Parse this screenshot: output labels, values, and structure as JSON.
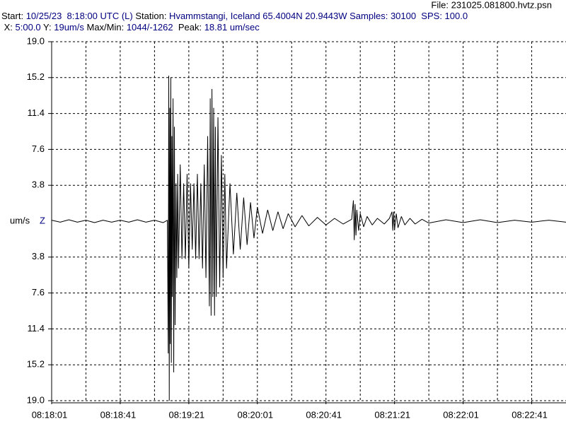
{
  "header": {
    "file": "File: 231025.081800.hvtz.psn",
    "lines": [
      [
        {
          "text": "Start:",
          "color": "#000000"
        },
        {
          "text": " 10/25/23  8:18:00 UTC (L) ",
          "color": "#000080"
        },
        {
          "text": "Station:",
          "color": "#000000"
        },
        {
          "text": " Hvammstangi, Iceland 65.4004N 20.9443W Samples: 30100  SPS: 100.0",
          "color": "#000080"
        }
      ],
      [
        {
          "text": " X:",
          "color": "#000000"
        },
        {
          "text": " 5:00.0 ",
          "color": "#000080"
        },
        {
          "text": "Y:",
          "color": "#000000"
        },
        {
          "text": " 19um/s ",
          "color": "#000080"
        },
        {
          "text": "Max/Min:",
          "color": "#000000"
        },
        {
          "text": " 1044/-1262  ",
          "color": "#000080"
        },
        {
          "text": "Peak:",
          "color": "#000000"
        },
        {
          "text": " 18.81 um/sec",
          "color": "#000080"
        }
      ]
    ]
  },
  "chart_data": {
    "type": "line",
    "y_unit": "um/s",
    "channel": "Z",
    "xlim": [
      0,
      300
    ],
    "ylim": [
      -19,
      19
    ],
    "xticks": [
      {
        "value": 0,
        "label": "08:18:01"
      },
      {
        "value": 40,
        "label": "08:18:41"
      },
      {
        "value": 80,
        "label": "08:19:21"
      },
      {
        "value": 120,
        "label": "08:20:01"
      },
      {
        "value": 160,
        "label": "08:20:41"
      },
      {
        "value": 200,
        "label": "08:21:21"
      },
      {
        "value": 240,
        "label": "08:22:01"
      },
      {
        "value": 280,
        "label": "08:22:41"
      }
    ],
    "xgrid": [
      20,
      40,
      60,
      80,
      100,
      120,
      140,
      160,
      180,
      200,
      220,
      240,
      260,
      280
    ],
    "yticks": [
      {
        "value": 19,
        "label": "19.0"
      },
      15.2,
      11.4,
      7.6,
      3.8,
      {
        "value": -3.8,
        "label": "3.8"
      },
      {
        "value": -7.6,
        "label": "7.6"
      },
      {
        "value": -11.4,
        "label": "11.4"
      },
      {
        "value": -15.2,
        "label": "15.2"
      },
      {
        "value": -19,
        "label": "19.0"
      }
    ],
    "grid": true,
    "series": [
      {
        "color": "#000000",
        "x": [
          0,
          5,
          10,
          15,
          20,
          25,
          30,
          35,
          40,
          45,
          50,
          55,
          60,
          65,
          67.5,
          68,
          68.3,
          68.6,
          68.9,
          69.2,
          69.5,
          69.8,
          70.1,
          70.4,
          70.8,
          71.2,
          71.6,
          72,
          72.5,
          73,
          73.5,
          74,
          75,
          76,
          77,
          78,
          79,
          80,
          81,
          82,
          83,
          84,
          85,
          86,
          87,
          88,
          89,
          90,
          91,
          92,
          92.5,
          93,
          93.5,
          94,
          94.5,
          95,
          95.5,
          96,
          97,
          98,
          99,
          100,
          101,
          102,
          104,
          106,
          108,
          110,
          112,
          114,
          116,
          118,
          120,
          123,
          126,
          129,
          132,
          135,
          138,
          142,
          146,
          150,
          155,
          160,
          165,
          170,
          175,
          176,
          176.5,
          177,
          177.5,
          178,
          179,
          180,
          182,
          184,
          187,
          190,
          194,
          197,
          198.5,
          199,
          199.5,
          200,
          201,
          202,
          204,
          206,
          209,
          212,
          216,
          220,
          230,
          240,
          250,
          260,
          270,
          280,
          290,
          300
        ],
        "values": [
          0.1,
          -0.1,
          0.15,
          -0.1,
          0.1,
          -0.15,
          0.1,
          -0.1,
          0.1,
          -0.1,
          0.15,
          -0.1,
          0.1,
          -0.15,
          0.1,
          -14,
          15.4,
          -19,
          12,
          -13,
          15.2,
          -15,
          9,
          -8,
          13,
          -16,
          10,
          -11,
          4,
          -6,
          5,
          -5,
          6,
          -4,
          4,
          -4,
          5,
          -5,
          4,
          -3,
          4,
          -4,
          5,
          -4,
          4,
          -5,
          6,
          -6,
          9,
          -9,
          13,
          -10,
          14,
          -8,
          12,
          -10,
          10,
          -8,
          11,
          -7,
          7,
          -6,
          5,
          -5,
          4,
          -3.5,
          3,
          -3,
          2.5,
          -2.5,
          2,
          -1.8,
          1.5,
          -1.3,
          1.2,
          -1,
          1,
          -0.8,
          0.8,
          -0.6,
          0.6,
          -0.5,
          0.4,
          -0.4,
          0.3,
          -0.3,
          0.2,
          2.2,
          -2,
          1.8,
          -1.5,
          1.2,
          -1,
          0.8,
          -0.6,
          0.5,
          -0.4,
          0.3,
          -0.3,
          0.3,
          1,
          -1,
          1,
          -0.9,
          0.8,
          -0.7,
          0.5,
          -0.4,
          0.3,
          -0.3,
          0.2,
          -0.2,
          0.15,
          -0.15,
          0.15,
          -0.15,
          0.1,
          -0.1,
          0.1,
          -0.1
        ]
      }
    ]
  }
}
